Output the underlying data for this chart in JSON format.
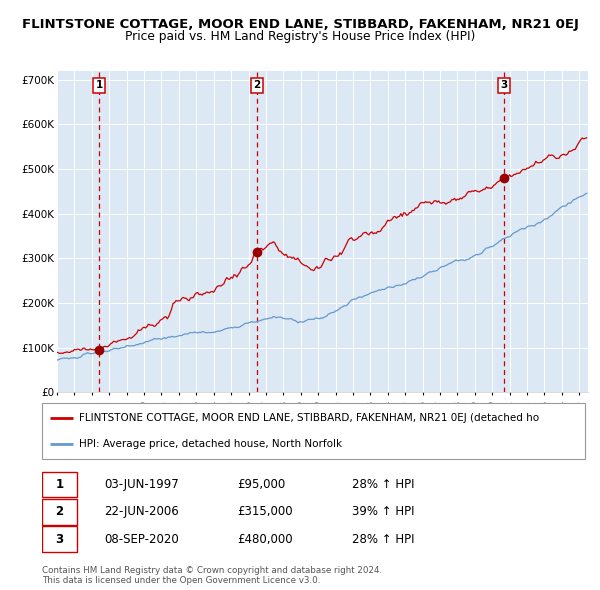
{
  "title": "FLINTSTONE COTTAGE, MOOR END LANE, STIBBARD, FAKENHAM, NR21 0EJ",
  "subtitle": "Price paid vs. HM Land Registry's House Price Index (HPI)",
  "ylim": [
    0,
    720000
  ],
  "yticks": [
    0,
    100000,
    200000,
    300000,
    400000,
    500000,
    600000,
    700000
  ],
  "ytick_labels": [
    "£0",
    "£100K",
    "£200K",
    "£300K",
    "£400K",
    "£500K",
    "£600K",
    "£700K"
  ],
  "xlim_start": 1995.0,
  "xlim_end": 2025.5,
  "plot_bg_color": "#dce9f5",
  "grid_color": "#ffffff",
  "red_line_color": "#cc0000",
  "blue_line_color": "#6699cc",
  "marker_color": "#990000",
  "dashed_line_color": "#cc0000",
  "purchase_dates": [
    1997.42,
    2006.47,
    2020.68
  ],
  "purchase_prices": [
    95000,
    315000,
    480000
  ],
  "purchase_labels": [
    "1",
    "2",
    "3"
  ],
  "legend_red": "FLINTSTONE COTTAGE, MOOR END LANE, STIBBARD, FAKENHAM, NR21 0EJ (detached ho",
  "legend_blue": "HPI: Average price, detached house, North Norfolk",
  "table_rows": [
    [
      "1",
      "03-JUN-1997",
      "£95,000",
      "28% ↑ HPI"
    ],
    [
      "2",
      "22-JUN-2006",
      "£315,000",
      "39% ↑ HPI"
    ],
    [
      "3",
      "08-SEP-2020",
      "£480,000",
      "28% ↑ HPI"
    ]
  ],
  "footnote1": "Contains HM Land Registry data © Crown copyright and database right 2024.",
  "footnote2": "This data is licensed under the Open Government Licence v3.0."
}
